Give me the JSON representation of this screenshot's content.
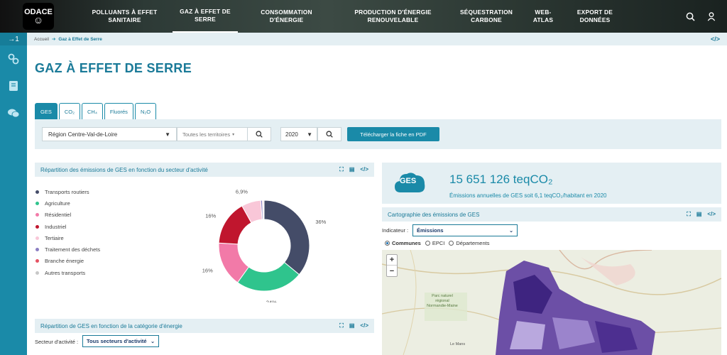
{
  "logo": {
    "text_top": "ODACE"
  },
  "nav": {
    "items": [
      {
        "label": "Polluants à effet sanitaire",
        "active": false
      },
      {
        "label": "Gaz à effet de serre",
        "active": true
      },
      {
        "label": "Consommation d'énergie",
        "active": false
      },
      {
        "label": "Production d'énergie renouvelable",
        "active": false
      },
      {
        "label": "Séquestration carbone",
        "active": false
      },
      {
        "label": "Web-atlas",
        "active": false
      },
      {
        "label": "Export de données",
        "active": false
      }
    ],
    "icons": [
      "search-icon",
      "user-icon"
    ]
  },
  "rail": {
    "toggle": "→1",
    "icons": [
      "gears-icon",
      "book-icon",
      "chat-icon"
    ]
  },
  "breadcrumb": {
    "home": "Accueil",
    "current": "Gaz à Effet de Serre",
    "code_icon": "</>"
  },
  "page_title": "GAZ À EFFET DE SERRE",
  "tabs": [
    {
      "label": "GES",
      "active": true
    },
    {
      "label": "CO₂",
      "active": false
    },
    {
      "label": "CH₄",
      "active": false
    },
    {
      "label": "Fluorés",
      "active": false
    },
    {
      "label": "N₂O",
      "active": false
    }
  ],
  "filters": {
    "region": "Région Centre-Val-de-Loire",
    "territory_placeholder": "Toutes les territoires",
    "year": "2020",
    "pdf_button": "Télécharger la fiche en PDF"
  },
  "panel_sector": {
    "title": "Répartition des émissions de GES en fonction du secteur d'activité",
    "icons": [
      "expand-icon",
      "document-icon",
      "code-icon"
    ]
  },
  "panel_energy": {
    "title": "Répartition de GES en fonction de la catégorie d'énergie",
    "sector_label": "Secteur d'activité :",
    "sector_value": "Tous secteurs d'activité"
  },
  "chart_data": {
    "type": "pie",
    "donut": true,
    "categories": [
      "Transports routiers",
      "Agriculture",
      "Résidentiel",
      "Industriel",
      "Tertiaire",
      "Traitement des déchets",
      "Branche énergie",
      "Autres transports"
    ],
    "values": [
      36,
      24,
      16,
      16,
      6.9,
      0.6,
      0.3,
      0.3
    ],
    "colors": [
      "#444c68",
      "#2fc48d",
      "#f27aa8",
      "#c0162e",
      "#f9c7d8",
      "#8b7ec2",
      "#e55263",
      "#c8c8c8"
    ],
    "data_labels": [
      "36%",
      "24%",
      "16%",
      "16%",
      "6,9%",
      "",
      "",
      ""
    ],
    "legend_position": "left"
  },
  "summary": {
    "badge": "GES",
    "value": "15 651 126 teqCO₂",
    "subtitle": "Émissions annuelles de GES soit 6,1 teqCO₂/habitant en 2020"
  },
  "map_panel": {
    "title": "Cartographie des émissions de GES",
    "indicator_label": "Indicateur :",
    "indicator_value": "Émissions",
    "radios": [
      {
        "label": "Communes",
        "checked": true
      },
      {
        "label": "EPCI",
        "checked": false
      },
      {
        "label": "Départements",
        "checked": false
      }
    ],
    "zoom_in": "+",
    "zoom_out": "−",
    "place_labels": [
      "Parc naturel régional Normandie-Maine",
      "Le Mans"
    ]
  },
  "colors": {
    "accent": "#1a8aa8",
    "title": "#1a7a98",
    "panel_bg": "#e4eff3"
  }
}
